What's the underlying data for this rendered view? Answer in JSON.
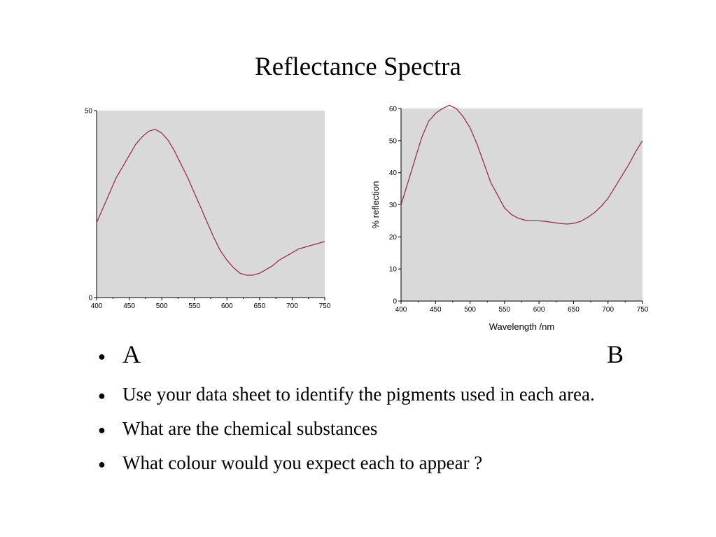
{
  "slide": {
    "title": "Reflectance Spectra",
    "bullets": {
      "first_left": "A",
      "first_right": "B",
      "items": [
        "Use your data sheet to identify the pigments used in each area.",
        "What are the chemical substances",
        "What colour would you expect each to appear ?"
      ],
      "bullet_symbol": "●"
    }
  },
  "chart_data": [
    {
      "type": "line",
      "panel": "A",
      "x_ticks": [
        "400",
        "450",
        "500",
        "550",
        "600",
        "650",
        "700",
        "750"
      ],
      "y_ticks": [
        "0",
        "50"
      ],
      "xlim": [
        400,
        750
      ],
      "ylim": [
        0,
        50
      ],
      "xlabel": "",
      "ylabel": "",
      "series": [
        {
          "color": "#9b2d4e",
          "x": [
            400,
            410,
            420,
            430,
            440,
            450,
            460,
            470,
            480,
            490,
            500,
            510,
            520,
            530,
            540,
            550,
            560,
            570,
            580,
            590,
            600,
            610,
            620,
            630,
            640,
            650,
            660,
            670,
            680,
            690,
            700,
            710,
            720,
            730,
            740,
            750
          ],
          "y": [
            20,
            24,
            28,
            32,
            35,
            38,
            41,
            43,
            44.5,
            45,
            44,
            42,
            39,
            35.5,
            32,
            28,
            24,
            20,
            16,
            12.5,
            10,
            8,
            6.5,
            6,
            6,
            6.5,
            7.5,
            8.5,
            10,
            11,
            12,
            13,
            13.5,
            14,
            14.5,
            15
          ]
        }
      ],
      "plot_background": "#d9d9d9",
      "grid": false
    },
    {
      "type": "line",
      "panel": "B",
      "x_ticks": [
        "400",
        "450",
        "500",
        "550",
        "600",
        "650",
        "700",
        "750"
      ],
      "y_ticks": [
        "0",
        "10",
        "20",
        "30",
        "40",
        "50",
        "60"
      ],
      "xlim": [
        400,
        750
      ],
      "ylim": [
        0,
        60
      ],
      "xlabel": "Wavelength /nm",
      "ylabel": "% reflection",
      "series": [
        {
          "color": "#9b2d4e",
          "x": [
            400,
            410,
            420,
            430,
            440,
            450,
            460,
            470,
            480,
            490,
            500,
            510,
            520,
            530,
            540,
            550,
            560,
            570,
            580,
            590,
            600,
            610,
            620,
            630,
            640,
            650,
            660,
            670,
            680,
            690,
            700,
            710,
            720,
            730,
            740,
            750
          ],
          "y": [
            30,
            37,
            44,
            51,
            56,
            58.5,
            60,
            61,
            60,
            57.5,
            54,
            49,
            43,
            37,
            33,
            29,
            27,
            25.8,
            25.2,
            25,
            25,
            24.8,
            24.5,
            24.2,
            24,
            24.2,
            24.8,
            26,
            27.5,
            29.5,
            32,
            35.5,
            39,
            42.5,
            46.5,
            50
          ]
        }
      ],
      "plot_background": "#d9d9d9",
      "grid": false
    }
  ]
}
